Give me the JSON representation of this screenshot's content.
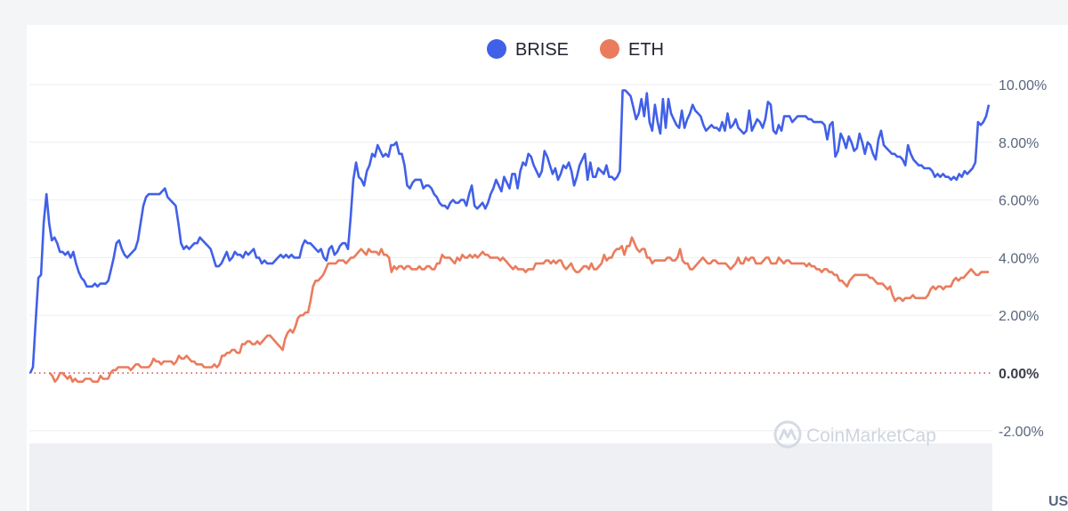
{
  "chart_data": {
    "type": "line",
    "title": "",
    "xlabel": "",
    "ylabel": "",
    "ylim": [
      -2.6,
      10.3
    ],
    "y_ticks": [
      "10.00%",
      "8.00%",
      "6.00%",
      "4.00%",
      "2.00%",
      "0.00%",
      "-2.00%"
    ],
    "y_tick_values": [
      10,
      8,
      6,
      4,
      2,
      0,
      -2
    ],
    "currency_label": "US",
    "legend_position": "top-center",
    "grid": true,
    "watermark": "CoinMarketCap",
    "series": [
      {
        "name": "BRISE",
        "color": "#4160e8",
        "values": [
          0.0,
          0.2,
          1.8,
          3.3,
          3.4,
          5.2,
          6.2,
          5.2,
          4.6,
          4.7,
          4.5,
          4.2,
          4.2,
          4.1,
          4.2,
          4.0,
          4.2,
          3.8,
          3.5,
          3.3,
          3.2,
          3.0,
          3.0,
          3.0,
          3.1,
          3.0,
          3.1,
          3.1,
          3.1,
          3.2,
          3.6,
          4.0,
          4.5,
          4.6,
          4.3,
          4.1,
          4.0,
          4.1,
          4.2,
          4.3,
          4.6,
          5.2,
          5.8,
          6.1,
          6.2,
          6.2,
          6.2,
          6.2,
          6.2,
          6.3,
          6.4,
          6.1,
          6.0,
          5.9,
          5.8,
          5.2,
          4.5,
          4.3,
          4.4,
          4.3,
          4.4,
          4.5,
          4.5,
          4.7,
          4.6,
          4.5,
          4.4,
          4.3,
          4.0,
          3.7,
          3.7,
          3.8,
          4.0,
          4.2,
          3.9,
          4.0,
          4.2,
          4.1,
          4.1,
          4.0,
          4.2,
          4.1,
          4.2,
          4.3,
          4.0,
          4.0,
          3.8,
          3.9,
          3.8,
          3.8,
          3.8,
          3.9,
          4.0,
          4.1,
          4.0,
          4.1,
          4.0,
          4.1,
          4.0,
          4.0,
          4.0,
          4.4,
          4.6,
          4.5,
          4.5,
          4.4,
          4.3,
          4.2,
          4.3,
          4.0,
          3.9,
          4.3,
          4.4,
          4.1,
          4.2,
          4.4,
          4.5,
          4.5,
          4.3,
          5.4,
          6.7,
          7.3,
          6.8,
          6.7,
          6.5,
          7.0,
          7.2,
          7.6,
          7.5,
          7.9,
          7.7,
          7.5,
          7.6,
          7.5,
          7.9,
          7.9,
          8.0,
          7.6,
          7.6,
          7.2,
          6.5,
          6.4,
          6.6,
          6.7,
          6.7,
          6.7,
          6.4,
          6.5,
          6.5,
          6.4,
          6.2,
          6.1,
          5.9,
          5.8,
          5.8,
          5.7,
          5.9,
          6.0,
          5.9,
          5.9,
          6.0,
          6.0,
          5.8,
          6.2,
          6.5,
          5.8,
          5.7,
          5.8,
          5.9,
          5.7,
          5.9,
          6.2,
          6.4,
          6.7,
          6.5,
          6.3,
          6.8,
          6.6,
          6.4,
          6.9,
          6.9,
          6.4,
          7.0,
          7.3,
          7.2,
          7.6,
          7.5,
          7.2,
          7.0,
          6.8,
          7.0,
          7.7,
          7.5,
          7.2,
          6.9,
          7.1,
          6.7,
          6.9,
          7.2,
          7.1,
          7.3,
          7.0,
          6.5,
          6.8,
          7.2,
          7.4,
          7.6,
          6.7,
          7.3,
          6.8,
          6.8,
          7.1,
          7.0,
          6.9,
          7.2,
          6.8,
          6.8,
          6.7,
          6.8,
          7.0,
          9.8,
          9.8,
          9.7,
          9.6,
          9.2,
          8.8,
          9.0,
          9.5,
          8.9,
          9.7,
          8.7,
          8.4,
          9.3,
          8.7,
          8.3,
          9.5,
          8.5,
          9.5,
          9.0,
          8.8,
          8.6,
          8.5,
          9.1,
          8.5,
          8.8,
          9.0,
          9.3,
          9.1,
          9.0,
          8.9,
          8.6,
          8.4,
          8.5,
          8.6,
          8.5,
          8.5,
          8.4,
          8.7,
          8.4,
          9.0,
          8.5,
          8.6,
          8.8,
          8.5,
          8.4,
          8.3,
          8.4,
          9.1,
          8.4,
          8.6,
          8.8,
          8.7,
          8.5,
          8.8,
          9.4,
          9.3,
          8.4,
          8.3,
          8.6,
          8.4,
          8.9,
          8.9,
          8.9,
          8.7,
          8.8,
          8.9,
          8.9,
          8.9,
          8.9,
          8.8,
          8.8,
          8.7,
          8.7,
          8.7,
          8.7,
          8.6,
          8.1,
          8.6,
          8.7,
          7.5,
          7.7,
          8.3,
          8.1,
          7.8,
          8.2,
          8.0,
          7.7,
          7.8,
          8.3,
          8.0,
          7.6,
          8.0,
          7.9,
          7.6,
          7.4,
          8.1,
          8.4,
          7.9,
          7.8,
          7.7,
          7.6,
          7.6,
          7.5,
          7.5,
          7.4,
          7.2,
          7.9,
          7.6,
          7.4,
          7.3,
          7.2,
          7.2,
          7.1,
          7.1,
          7.1,
          7.0,
          6.8,
          6.9,
          6.8,
          6.9,
          6.8,
          6.8,
          6.7,
          6.8,
          6.7,
          6.9,
          6.8,
          7.0,
          6.9,
          7.0,
          7.1,
          7.3,
          8.7,
          8.6,
          8.7,
          8.9,
          9.3
        ]
      },
      {
        "name": "ETH",
        "color": "#ea7c5d",
        "values": [
          0.0,
          -0.1,
          -0.3,
          -0.2,
          0.0,
          0.0,
          -0.1,
          -0.2,
          -0.1,
          -0.3,
          -0.2,
          -0.3,
          -0.3,
          -0.3,
          -0.2,
          -0.2,
          -0.2,
          -0.3,
          -0.3,
          -0.3,
          -0.1,
          -0.2,
          -0.2,
          -0.2,
          0.0,
          0.1,
          0.1,
          0.2,
          0.2,
          0.2,
          0.2,
          0.2,
          0.1,
          0.2,
          0.3,
          0.3,
          0.2,
          0.2,
          0.2,
          0.2,
          0.3,
          0.5,
          0.4,
          0.4,
          0.3,
          0.4,
          0.4,
          0.4,
          0.4,
          0.3,
          0.4,
          0.6,
          0.5,
          0.5,
          0.6,
          0.5,
          0.4,
          0.4,
          0.3,
          0.3,
          0.3,
          0.2,
          0.2,
          0.2,
          0.2,
          0.3,
          0.2,
          0.3,
          0.6,
          0.6,
          0.7,
          0.7,
          0.8,
          0.8,
          0.7,
          0.7,
          1.0,
          1.0,
          1.1,
          1.1,
          1.0,
          1.0,
          1.1,
          1.0,
          1.1,
          1.2,
          1.3,
          1.3,
          1.2,
          1.1,
          1.0,
          0.9,
          0.8,
          1.2,
          1.4,
          1.5,
          1.4,
          1.6,
          1.9,
          2.0,
          2.0,
          2.1,
          2.1,
          2.5,
          3.0,
          3.2,
          3.2,
          3.3,
          3.4,
          3.6,
          3.8,
          3.8,
          3.8,
          3.8,
          3.9,
          3.9,
          3.9,
          3.8,
          3.9,
          4.0,
          4.0,
          4.1,
          4.2,
          4.3,
          4.2,
          4.1,
          4.3,
          4.2,
          4.2,
          4.2,
          4.1,
          4.3,
          4.1,
          4.1,
          4.0,
          3.5,
          3.7,
          3.6,
          3.7,
          3.7,
          3.6,
          3.7,
          3.7,
          3.6,
          3.6,
          3.6,
          3.7,
          3.6,
          3.6,
          3.7,
          3.7,
          3.6,
          3.6,
          3.8,
          3.8,
          4.1,
          4.0,
          4.0,
          4.0,
          3.9,
          3.8,
          4.0,
          3.9,
          4.1,
          4.0,
          4.0,
          4.1,
          4.0,
          4.1,
          4.0,
          4.1,
          4.2,
          4.1,
          4.1,
          4.0,
          4.0,
          4.0,
          4.0,
          3.9,
          4.0,
          3.9,
          3.8,
          3.7,
          3.6,
          3.7,
          3.6,
          3.6,
          3.6,
          3.5,
          3.6,
          3.6,
          3.6,
          3.8,
          3.8,
          3.8,
          3.8,
          3.9,
          3.9,
          3.8,
          3.9,
          3.8,
          3.9,
          3.9,
          3.7,
          3.6,
          3.7,
          3.8,
          3.6,
          3.5,
          3.5,
          3.6,
          3.7,
          3.7,
          3.6,
          3.8,
          3.6,
          3.6,
          3.7,
          3.8,
          4.1,
          3.9,
          4.0,
          4.0,
          4.2,
          4.3,
          4.3,
          4.4,
          4.1,
          4.4,
          4.4,
          4.7,
          4.5,
          4.3,
          4.2,
          4.3,
          4.3,
          4.0,
          4.0,
          3.8,
          3.9,
          3.9,
          3.9,
          3.9,
          3.9,
          4.0,
          4.0,
          3.9,
          3.9,
          4.0,
          4.3,
          3.9,
          3.8,
          3.8,
          3.6,
          3.6,
          3.7,
          3.8,
          3.9,
          4.0,
          3.9,
          3.8,
          3.8,
          3.9,
          3.9,
          3.8,
          3.8,
          3.8,
          3.8,
          3.7,
          3.6,
          3.7,
          3.8,
          4.0,
          3.8,
          3.8,
          4.0,
          3.9,
          4.0,
          4.0,
          3.8,
          3.8,
          3.8,
          3.9,
          4.0,
          4.0,
          3.8,
          3.8,
          3.8,
          4.0,
          3.9,
          3.8,
          3.9,
          3.9,
          3.8,
          3.8,
          3.8,
          3.8,
          3.8,
          3.8,
          3.7,
          3.8,
          3.7,
          3.7,
          3.6,
          3.6,
          3.5,
          3.6,
          3.6,
          3.5,
          3.5,
          3.4,
          3.4,
          3.2,
          3.2,
          3.1,
          3.0,
          3.2,
          3.3,
          3.4,
          3.4,
          3.4,
          3.4,
          3.4,
          3.4,
          3.3,
          3.3,
          3.2,
          3.1,
          3.1,
          3.1,
          3.0,
          2.9,
          3.0,
          2.7,
          2.5,
          2.6,
          2.6,
          2.5,
          2.6,
          2.6,
          2.6,
          2.7,
          2.6,
          2.6,
          2.6,
          2.6,
          2.6,
          2.7,
          2.9,
          3.0,
          2.9,
          3.0,
          3.0,
          2.9,
          3.0,
          3.0,
          3.0,
          3.2,
          3.3,
          3.2,
          3.3,
          3.3,
          3.4,
          3.5,
          3.6,
          3.5,
          3.4,
          3.4,
          3.5,
          3.5,
          3.5,
          3.5
        ]
      }
    ]
  }
}
